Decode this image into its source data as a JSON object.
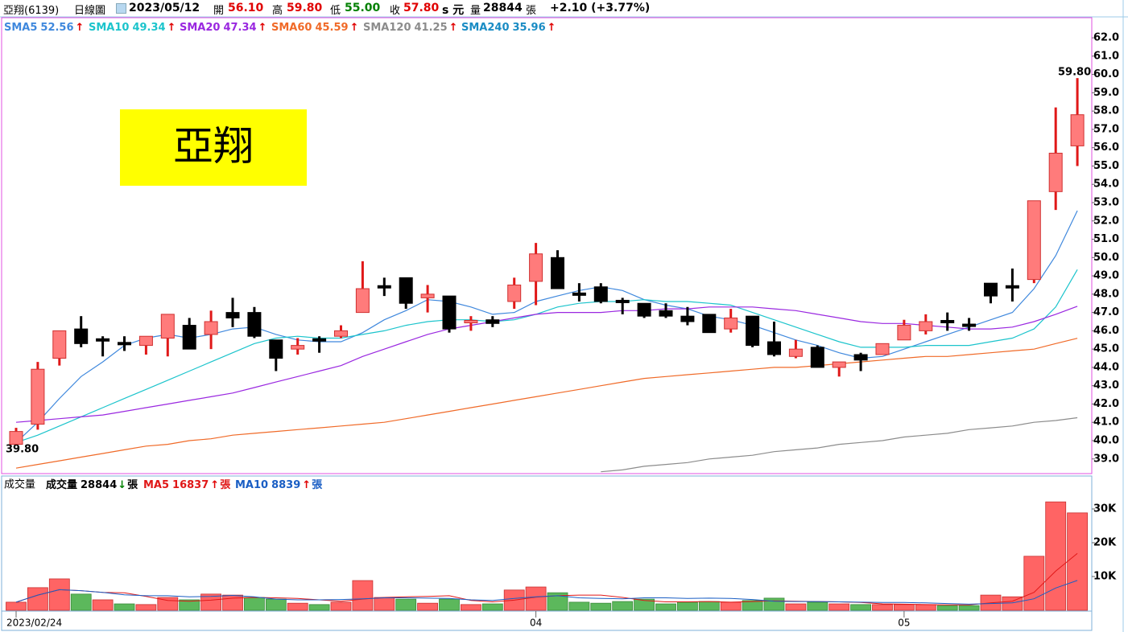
{
  "header": {
    "name": "亞翔(6139)",
    "period": "日線圖",
    "date": "2023/05/12",
    "items": [
      {
        "label": "開",
        "value": "56.10",
        "color": "#e00000"
      },
      {
        "label": "高",
        "value": "59.80",
        "color": "#e00000"
      },
      {
        "label": "低",
        "value": "55.00",
        "color": "#008000"
      },
      {
        "label": "收",
        "value": "57.80",
        "color": "#e00000"
      }
    ],
    "unit": "s 元",
    "volume_label": "量",
    "volume": "28844",
    "volume_unit": "張",
    "change": "+2.10 (+3.77%)"
  },
  "chart_data": [
    {
      "type": "candlestick",
      "title": "亞翔",
      "open": [
        39.8,
        40.9,
        44.5,
        46.1,
        45.5,
        45.3,
        45.2,
        45.6,
        46.3,
        45.8,
        47.0,
        47.0,
        45.5,
        45.0,
        45.5,
        45.7,
        47.0,
        48.4,
        48.9,
        47.8,
        47.9,
        46.4,
        46.6,
        47.6,
        48.7,
        50.0,
        48.0,
        48.4,
        47.6,
        47.5,
        47.1,
        46.8,
        46.9,
        46.1,
        46.8,
        45.4,
        44.6,
        45.1,
        44.0,
        44.7,
        44.7,
        45.5,
        46.0,
        46.5,
        46.3,
        48.6,
        48.4,
        48.8,
        53.6,
        56.1
      ],
      "high": [
        40.7,
        44.3,
        46.0,
        46.8,
        45.7,
        45.7,
        45.7,
        46.9,
        46.7,
        47.1,
        47.8,
        47.3,
        45.5,
        45.6,
        45.7,
        46.3,
        49.8,
        48.9,
        48.9,
        48.5,
        47.9,
        46.8,
        46.8,
        48.9,
        50.8,
        50.4,
        48.6,
        48.6,
        47.8,
        47.5,
        47.5,
        47.3,
        46.9,
        47.2,
        46.8,
        46.5,
        45.5,
        45.2,
        44.3,
        44.8,
        45.3,
        46.6,
        46.9,
        47.0,
        46.7,
        48.6,
        49.4,
        53.1,
        58.2,
        59.8
      ],
      "low": [
        39.8,
        40.6,
        44.1,
        45.1,
        44.6,
        44.9,
        44.7,
        44.6,
        45.0,
        45.0,
        46.2,
        45.6,
        43.8,
        44.7,
        44.8,
        45.6,
        47.0,
        47.9,
        47.2,
        47.0,
        45.9,
        46.0,
        46.2,
        47.2,
        47.4,
        48.3,
        47.6,
        47.5,
        46.9,
        46.7,
        46.7,
        46.3,
        45.9,
        45.9,
        45.1,
        44.6,
        44.5,
        44.0,
        43.5,
        43.8,
        44.7,
        45.5,
        45.8,
        46.0,
        46.0,
        47.5,
        47.6,
        48.6,
        52.6,
        55.0
      ],
      "close": [
        40.5,
        43.9,
        46.0,
        45.3,
        45.4,
        45.2,
        45.7,
        46.9,
        45.0,
        46.5,
        46.7,
        45.7,
        44.5,
        45.2,
        45.4,
        46.0,
        48.3,
        48.4,
        47.5,
        48.0,
        46.1,
        46.5,
        46.4,
        48.5,
        50.2,
        48.3,
        47.9,
        47.6,
        47.5,
        46.8,
        46.8,
        46.5,
        45.9,
        46.7,
        45.2,
        44.7,
        45.0,
        44.0,
        44.3,
        44.4,
        45.3,
        46.3,
        46.5,
        46.4,
        46.2,
        47.9,
        48.4,
        53.1,
        55.7,
        57.8
      ],
      "up_color": "#ff7b7b",
      "up_line": "#e01818",
      "down_color": "#000000",
      "ylim": [
        38.2,
        63.1
      ],
      "yticks": [
        {
          "value": 39,
          "label": "39.0"
        },
        {
          "value": 40,
          "label": "40.0"
        },
        {
          "value": 41,
          "label": "41.0"
        },
        {
          "value": 42,
          "label": "42.0"
        },
        {
          "value": 43,
          "label": "43.0"
        },
        {
          "value": 44,
          "label": "44.0"
        },
        {
          "value": 45,
          "label": "45.0"
        },
        {
          "value": 46,
          "label": "46.0"
        },
        {
          "value": 47,
          "label": "47.0"
        },
        {
          "value": 48,
          "label": "48.0"
        },
        {
          "value": 49,
          "label": "49.0"
        },
        {
          "value": 50,
          "label": "50.0"
        },
        {
          "value": 51,
          "label": "51.0"
        },
        {
          "value": 52,
          "label": "52.0"
        },
        {
          "value": 53,
          "label": "53.0"
        },
        {
          "value": 54,
          "label": "54.0"
        },
        {
          "value": 55,
          "label": "55.0"
        },
        {
          "value": 56,
          "label": "56.0"
        },
        {
          "value": 57,
          "label": "57.0"
        },
        {
          "value": 58,
          "label": "58.0"
        },
        {
          "value": 59,
          "label": "59.0"
        },
        {
          "value": 60,
          "label": "60.0"
        },
        {
          "value": 61,
          "label": "61.0"
        },
        {
          "value": 62,
          "label": "62.0"
        }
      ],
      "series": [
        {
          "name": "SMA5",
          "color": "#3f88dd",
          "legend_value": 52.56,
          "arrow": "↑",
          "values": [
            39.9,
            41.0,
            42.3,
            43.5,
            44.3,
            45.2,
            45.6,
            45.8,
            45.6,
            45.8,
            46.1,
            46.2,
            45.8,
            45.5,
            45.4,
            45.4,
            45.9,
            46.6,
            47.1,
            47.7,
            47.6,
            47.3,
            46.9,
            47.0,
            47.6,
            47.9,
            48.2,
            48.4,
            48.2,
            47.7,
            47.4,
            47.2,
            46.8,
            46.6,
            46.3,
            45.9,
            45.5,
            45.2,
            44.8,
            44.5,
            44.6,
            45.0,
            45.4,
            45.8,
            46.2,
            46.6,
            47.0,
            48.3,
            50.1,
            52.56
          ]
        },
        {
          "name": "SMA10",
          "color": "#1cc4cc",
          "legend_value": 49.34,
          "arrow": "↑",
          "values": [
            39.9,
            40.3,
            40.8,
            41.3,
            41.8,
            42.3,
            42.8,
            43.3,
            43.8,
            44.3,
            44.8,
            45.3,
            45.6,
            45.7,
            45.6,
            45.6,
            45.8,
            46.0,
            46.3,
            46.5,
            46.6,
            46.6,
            46.5,
            46.6,
            46.9,
            47.3,
            47.5,
            47.6,
            47.6,
            47.7,
            47.6,
            47.6,
            47.5,
            47.4,
            47.0,
            46.6,
            46.2,
            45.8,
            45.4,
            45.1,
            45.1,
            45.1,
            45.2,
            45.2,
            45.2,
            45.4,
            45.6,
            46.1,
            47.3,
            49.34
          ]
        },
        {
          "name": "SMA20",
          "color": "#9a28e0",
          "legend_value": 47.34,
          "arrow": "↑",
          "values": [
            41.0,
            41.1,
            41.2,
            41.3,
            41.4,
            41.6,
            41.8,
            42.0,
            42.2,
            42.4,
            42.6,
            42.9,
            43.2,
            43.5,
            43.8,
            44.1,
            44.6,
            45.0,
            45.4,
            45.8,
            46.1,
            46.3,
            46.5,
            46.7,
            46.9,
            47.0,
            47.0,
            47.0,
            47.1,
            47.1,
            47.2,
            47.2,
            47.3,
            47.3,
            47.3,
            47.2,
            47.1,
            46.9,
            46.7,
            46.5,
            46.4,
            46.4,
            46.3,
            46.2,
            46.1,
            46.1,
            46.2,
            46.5,
            46.9,
            47.34
          ]
        },
        {
          "name": "SMA60",
          "color": "#f06a28",
          "legend_value": 45.59,
          "arrow": "↑",
          "values": [
            38.5,
            38.7,
            38.9,
            39.1,
            39.3,
            39.5,
            39.7,
            39.8,
            40.0,
            40.1,
            40.3,
            40.4,
            40.5,
            40.6,
            40.7,
            40.8,
            40.9,
            41.0,
            41.2,
            41.4,
            41.6,
            41.8,
            42.0,
            42.2,
            42.4,
            42.6,
            42.8,
            43.0,
            43.2,
            43.4,
            43.5,
            43.6,
            43.7,
            43.8,
            43.9,
            44.0,
            44.0,
            44.1,
            44.2,
            44.3,
            44.4,
            44.5,
            44.6,
            44.6,
            44.7,
            44.8,
            44.9,
            45.0,
            45.3,
            45.59
          ]
        },
        {
          "name": "SMA120",
          "color": "#8c8c8c",
          "legend_value": 41.25,
          "arrow": "↑",
          "values": [
            null,
            null,
            null,
            null,
            null,
            null,
            null,
            null,
            null,
            null,
            null,
            null,
            null,
            null,
            null,
            null,
            null,
            null,
            null,
            null,
            null,
            null,
            null,
            null,
            null,
            null,
            null,
            38.3,
            38.4,
            38.6,
            38.7,
            38.8,
            39.0,
            39.1,
            39.2,
            39.4,
            39.5,
            39.6,
            39.8,
            39.9,
            40.0,
            40.2,
            40.3,
            40.4,
            40.6,
            40.7,
            40.8,
            41.0,
            41.1,
            41.25
          ]
        },
        {
          "name": "SMA240",
          "color": "#1a8cc4",
          "legend_value": 35.96,
          "arrow": "↑",
          "values": []
        }
      ],
      "annotations": [
        "59.80",
        "39.80"
      ]
    },
    {
      "type": "bar",
      "title": "成交量",
      "categories": [
        "2023/02/24",
        null,
        null,
        null,
        null,
        null,
        null,
        null,
        null,
        null,
        null,
        null,
        null,
        null,
        null,
        null,
        null,
        null,
        null,
        null,
        null,
        null,
        null,
        null,
        "04",
        null,
        null,
        null,
        null,
        null,
        null,
        null,
        null,
        null,
        null,
        null,
        null,
        null,
        null,
        null,
        null,
        "05",
        null,
        null,
        null,
        null,
        null,
        null,
        null,
        null
      ],
      "values": [
        2400,
        6700,
        9300,
        4800,
        3100,
        1900,
        1700,
        3800,
        3100,
        4800,
        4500,
        3800,
        3300,
        2100,
        1700,
        2400,
        8800,
        3800,
        3300,
        2100,
        3300,
        1700,
        1900,
        6000,
        6900,
        5200,
        2400,
        2100,
        2600,
        3300,
        1900,
        2400,
        2600,
        2400,
        2900,
        3600,
        1900,
        2400,
        1900,
        1700,
        1700,
        1700,
        1700,
        1400,
        1400,
        4500,
        4000,
        16000,
        32100,
        28844
      ],
      "colors": [
        "#ff6464",
        "#ff6464",
        "#ff6464",
        "#5cb85c",
        "#ff6464",
        "#5cb85c",
        "#ff6464",
        "#ff6464",
        "#5cb85c",
        "#ff6464",
        "#ff6464",
        "#5cb85c",
        "#5cb85c",
        "#ff6464",
        "#5cb85c",
        "#ff6464",
        "#ff6464",
        "#ff6464",
        "#5cb85c",
        "#ff6464",
        "#5cb85c",
        "#ff6464",
        "#5cb85c",
        "#ff6464",
        "#ff6464",
        "#5cb85c",
        "#5cb85c",
        "#5cb85c",
        "#5cb85c",
        "#5cb85c",
        "#5cb85c",
        "#5cb85c",
        "#5cb85c",
        "#ff6464",
        "#5cb85c",
        "#5cb85c",
        "#ff6464",
        "#5cb85c",
        "#ff6464",
        "#5cb85c",
        "#ff6464",
        "#ff6464",
        "#ff6464",
        "#5cb85c",
        "#5cb85c",
        "#ff6464",
        "#ff6464",
        "#ff6464",
        "#ff6464",
        "#ff6464"
      ],
      "ylim": [
        0,
        35000
      ],
      "yticks": [
        {
          "value": 10000,
          "label": "10K"
        },
        {
          "value": 20000,
          "label": "20K"
        },
        {
          "value": 30000,
          "label": "30K"
        }
      ],
      "volume_legend": {
        "name": "成交量",
        "value": 28844,
        "arrow": "↓",
        "unit": "張"
      },
      "series": [
        {
          "name": "MA5",
          "color": "#e01818",
          "legend_value": 16837,
          "arrow": "↑",
          "unit": "張",
          "values": [
            2400,
            4500,
            6100,
            5800,
            5300,
            5200,
            4100,
            2900,
            2700,
            3000,
            3600,
            3800,
            3700,
            3500,
            3100,
            2700,
            3300,
            3800,
            4000,
            4100,
            4300,
            2900,
            2500,
            3000,
            3900,
            4300,
            4500,
            4500,
            3800,
            2900,
            2500,
            2500,
            2600,
            2400,
            2600,
            2800,
            2700,
            2600,
            2500,
            2300,
            1900,
            1800,
            1700,
            1600,
            1600,
            2200,
            2700,
            5300,
            11600,
            16837
          ]
        },
        {
          "name": "MA10",
          "color": "#1a5ec4",
          "legend_value": 8839,
          "arrow": "↑",
          "unit": "張",
          "values": [
            2400,
            4500,
            6100,
            5800,
            5300,
            4600,
            4300,
            4300,
            4000,
            4100,
            4400,
            4000,
            3300,
            3100,
            3100,
            3200,
            3400,
            3700,
            3700,
            3600,
            3500,
            3100,
            2900,
            3500,
            4000,
            4300,
            3700,
            3500,
            3400,
            3700,
            3700,
            3500,
            3600,
            3500,
            3200,
            2700,
            2600,
            2600,
            2500,
            2400,
            2300,
            2300,
            2200,
            2000,
            1800,
            2000,
            2200,
            3400,
            6600,
            8839
          ]
        }
      ]
    }
  ]
}
